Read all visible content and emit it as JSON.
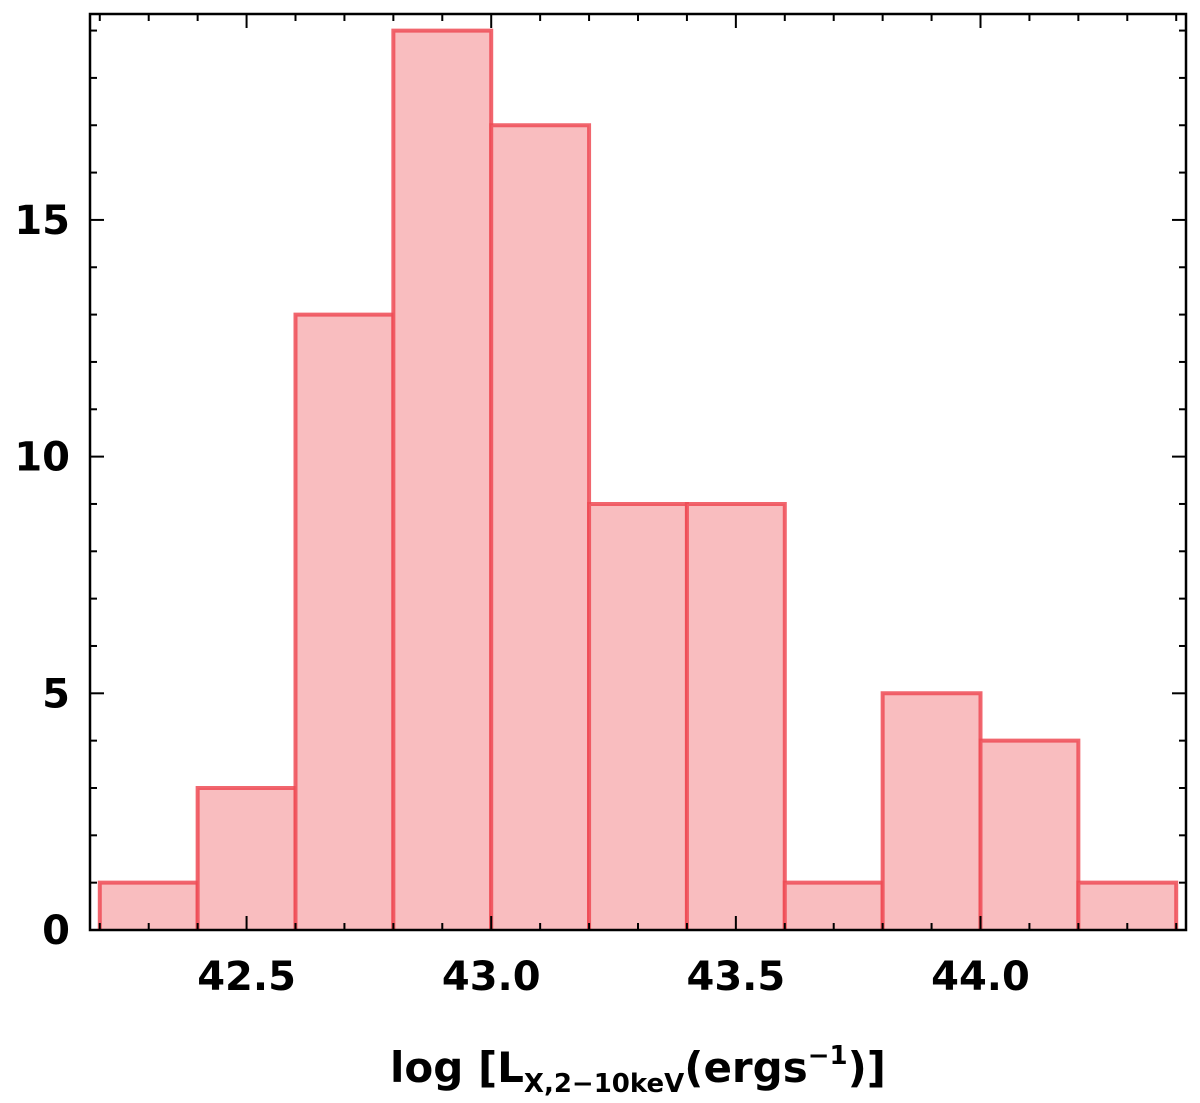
{
  "chart_data": {
    "type": "bar",
    "style": "step-histogram",
    "bin_edges": [
      42.2,
      42.4,
      42.6,
      42.8,
      43.0,
      43.2,
      43.4,
      43.6,
      43.8,
      44.0,
      44.2,
      44.4
    ],
    "values": [
      1,
      3,
      13,
      19,
      17,
      9,
      9,
      1,
      5,
      4,
      1
    ],
    "xlim": [
      42.18,
      44.42
    ],
    "ylim": [
      0,
      19.35
    ],
    "x_ticks": [
      42.5,
      43.0,
      43.5,
      44.0
    ],
    "x_tick_labels": [
      "42.5",
      "43.0",
      "43.5",
      "44.0"
    ],
    "y_ticks": [
      0,
      5,
      10,
      15
    ],
    "y_tick_labels": [
      "0",
      "5",
      "10",
      "15"
    ],
    "xlabel": {
      "main": "log [L",
      "sub": "X,2−10keV",
      "after_sub": "(ergs",
      "sup": "−1",
      "end": ")]"
    },
    "ylabel": "",
    "title": "",
    "grid": false,
    "colors": {
      "fill": "#f9bdbf",
      "edge": "#ee4b55",
      "axes": "#000000"
    }
  }
}
